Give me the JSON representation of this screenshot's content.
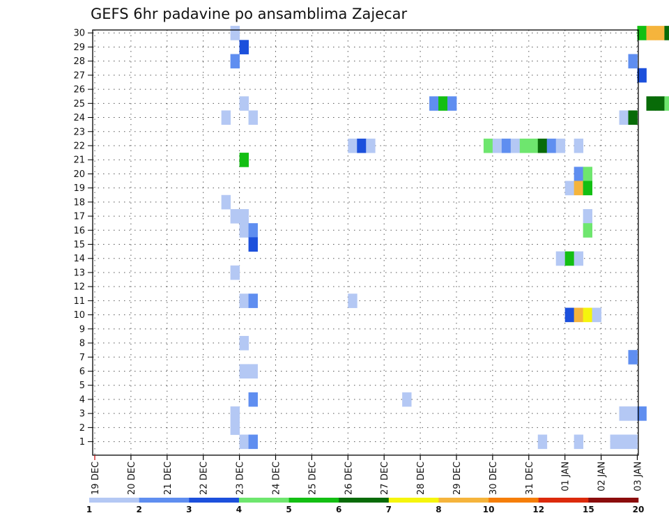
{
  "chart_data": {
    "type": "heatmap",
    "title": "GEFS 6hr padavine po ansamblima Zajecar",
    "x_tick_labels": [
      "19 DEC",
      "20 DEC",
      "21 DEC",
      "22 DEC",
      "23 DEC",
      "24 DEC",
      "25 DEC",
      "26 DEC",
      "27 DEC",
      "28 DEC",
      "29 DEC",
      "30 DEC",
      "31 DEC",
      "01 JAN",
      "02 JAN",
      "03 JAN"
    ],
    "x_start_label": "19 DEC",
    "step_hours": 6,
    "y_tick_labels": [
      "1",
      "2",
      "3",
      "4",
      "5",
      "6",
      "7",
      "8",
      "9",
      "10",
      "11",
      "12",
      "13",
      "14",
      "15",
      "16",
      "17",
      "18",
      "19",
      "20",
      "21",
      "22",
      "23",
      "24",
      "25",
      "26",
      "27",
      "28",
      "29",
      "30"
    ],
    "ylim": [
      1,
      30
    ],
    "grid": true,
    "colorbar": {
      "position": "bottom",
      "labels": [
        "1",
        "2",
        "3",
        "4",
        "5",
        "6",
        "7",
        "8",
        "10",
        "12",
        "15",
        "20"
      ],
      "colors": [
        "#b4c8f4",
        "#5f8ef0",
        "#1c50dc",
        "#6ee66e",
        "#13bf13",
        "#086b08",
        "#f5f50d",
        "#f5b43c",
        "#f57e08",
        "#dc2a0c",
        "#8b0c0c"
      ]
    },
    "cells": [
      {
        "member": 30,
        "times": [
          [
            15,
            1
          ]
        ]
      },
      {
        "member": 30,
        "times": [
          [
            60,
            5
          ],
          [
            61,
            8
          ],
          [
            62,
            8
          ],
          [
            63,
            6
          ],
          [
            64,
            2
          ],
          [
            65,
            1
          ]
        ]
      },
      {
        "member": 29,
        "times": [
          [
            16,
            3
          ]
        ]
      },
      {
        "member": 28,
        "times": [
          [
            15,
            2
          ]
        ]
      },
      {
        "member": 28,
        "times": [
          [
            59,
            2
          ]
        ]
      },
      {
        "member": 27,
        "times": [
          [
            60,
            3
          ]
        ]
      },
      {
        "member": 25,
        "times": [
          [
            16,
            1
          ]
        ]
      },
      {
        "member": 25,
        "times": [
          [
            37,
            2
          ],
          [
            38,
            5
          ],
          [
            39,
            2
          ]
        ]
      },
      {
        "member": 25,
        "times": [
          [
            61,
            6
          ],
          [
            62,
            6
          ],
          [
            63,
            4
          ]
        ]
      },
      {
        "member": 24,
        "times": [
          [
            14,
            1
          ],
          [
            17,
            1
          ]
        ]
      },
      {
        "member": 24,
        "times": [
          [
            58,
            1
          ],
          [
            59,
            6
          ]
        ]
      },
      {
        "member": 22,
        "times": [
          [
            28,
            1
          ],
          [
            29,
            3
          ],
          [
            30,
            1
          ]
        ]
      },
      {
        "member": 22,
        "times": [
          [
            43,
            4
          ],
          [
            44,
            1
          ],
          [
            45,
            2
          ],
          [
            46,
            1
          ],
          [
            47,
            4
          ],
          [
            48,
            4
          ],
          [
            49,
            6
          ],
          [
            50,
            2
          ],
          [
            51,
            1
          ],
          [
            53,
            1
          ]
        ]
      },
      {
        "member": 21,
        "times": [
          [
            16,
            5
          ]
        ]
      },
      {
        "member": 20,
        "times": [
          [
            53,
            2
          ],
          [
            54,
            4
          ]
        ]
      },
      {
        "member": 19,
        "times": [
          [
            52,
            1
          ],
          [
            53,
            8
          ],
          [
            54,
            5
          ]
        ]
      },
      {
        "member": 18,
        "times": [
          [
            14,
            1
          ]
        ]
      },
      {
        "member": 17,
        "times": [
          [
            15,
            1
          ],
          [
            16,
            1
          ]
        ]
      },
      {
        "member": 17,
        "times": [
          [
            54,
            1
          ]
        ]
      },
      {
        "member": 16,
        "times": [
          [
            16,
            1
          ],
          [
            17,
            2
          ]
        ]
      },
      {
        "member": 16,
        "times": [
          [
            54,
            4
          ]
        ]
      },
      {
        "member": 15,
        "times": [
          [
            17,
            3
          ]
        ]
      },
      {
        "member": 14,
        "times": [
          [
            51,
            1
          ],
          [
            52,
            5
          ],
          [
            53,
            1
          ]
        ]
      },
      {
        "member": 13,
        "times": [
          [
            15,
            1
          ]
        ]
      },
      {
        "member": 11,
        "times": [
          [
            16,
            1
          ],
          [
            17,
            2
          ]
        ]
      },
      {
        "member": 11,
        "times": [
          [
            28,
            1
          ]
        ]
      },
      {
        "member": 10,
        "times": [
          [
            52,
            3
          ],
          [
            53,
            8
          ],
          [
            54,
            7
          ],
          [
            55,
            1
          ]
        ]
      },
      {
        "member": 8,
        "times": [
          [
            16,
            1
          ]
        ]
      },
      {
        "member": 7,
        "times": [
          [
            59,
            2
          ]
        ]
      },
      {
        "member": 6,
        "times": [
          [
            16,
            1
          ],
          [
            17,
            1
          ]
        ]
      },
      {
        "member": 4,
        "times": [
          [
            17,
            2
          ]
        ]
      },
      {
        "member": 4,
        "times": [
          [
            34,
            1
          ]
        ]
      },
      {
        "member": 3,
        "times": [
          [
            15,
            1
          ]
        ]
      },
      {
        "member": 3,
        "times": [
          [
            58,
            1
          ],
          [
            59,
            1
          ]
        ]
      },
      {
        "member": 3,
        "times": [
          [
            60,
            2
          ]
        ]
      },
      {
        "member": 2,
        "times": [
          [
            15,
            1
          ]
        ]
      },
      {
        "member": 1,
        "times": [
          [
            16,
            1
          ],
          [
            17,
            2
          ]
        ]
      },
      {
        "member": 1,
        "times": [
          [
            49,
            1
          ]
        ]
      },
      {
        "member": 1,
        "times": [
          [
            53,
            1
          ]
        ]
      },
      {
        "member": 1,
        "times": [
          [
            57,
            1
          ],
          [
            58,
            1
          ],
          [
            59,
            1
          ]
        ]
      }
    ]
  }
}
